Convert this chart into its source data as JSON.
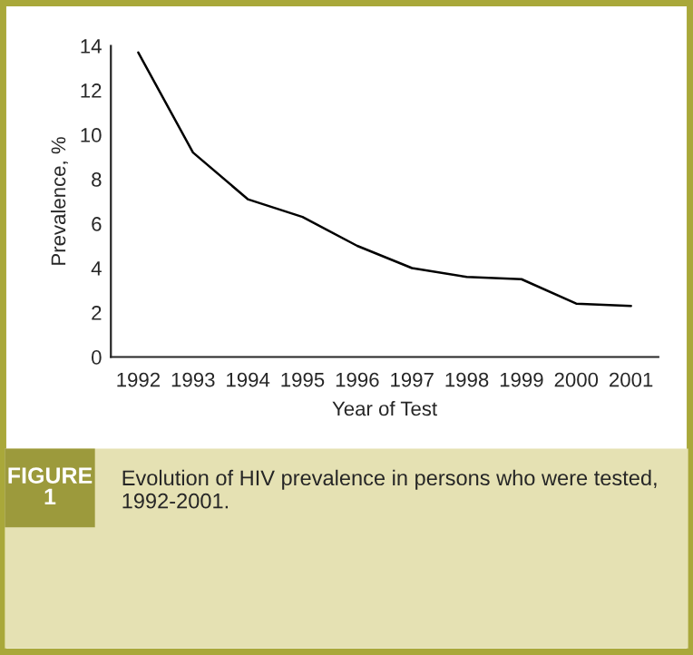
{
  "chart_data": {
    "type": "line",
    "xlabel": "Year of Test",
    "ylabel": "Prevalence, %",
    "categories": [
      "1992",
      "1993",
      "1994",
      "1995",
      "1996",
      "1997",
      "1998",
      "1999",
      "2000",
      "2001"
    ],
    "series": [
      {
        "color": "#000000",
        "values": [
          13.7,
          9.2,
          7.1,
          6.3,
          5.0,
          4.0,
          3.6,
          3.5,
          2.4,
          2.3
        ]
      }
    ],
    "ylim": [
      0,
      14
    ],
    "yticks": [
      0,
      2,
      4,
      6,
      8,
      10,
      12,
      14
    ],
    "grid": false,
    "annotations": [
      "FIGURE\n1",
      "Evolution of HIV prevalence in persons who were tested, 1992-2001."
    ]
  }
}
